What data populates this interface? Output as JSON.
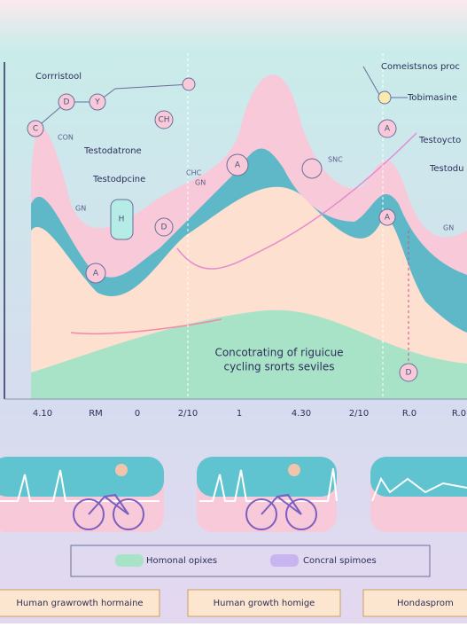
{
  "chart": {
    "labels": [
      "Corrristool",
      "Comeistsnos proc",
      "Tobimasine",
      "Testoycto",
      "Testodu",
      "Testodatrone",
      "Testodpcine"
    ],
    "small_labels": [
      "CON",
      "GN",
      "SNC",
      "CHC",
      "GN",
      "GN"
    ],
    "node_letters": [
      "C",
      "D",
      "Y",
      "A",
      "A",
      "D",
      "H",
      "A",
      "D",
      "A",
      "CH"
    ],
    "caption_lines": [
      "Concotrating of riguicue",
      "cycling srorts seviles"
    ],
    "x_labels": [
      "4.10",
      "RM",
      "0",
      "2/10",
      "1",
      "4.30",
      "2/10",
      "R.0",
      "R.0"
    ]
  },
  "legend": [
    "Homonal opixes",
    "Concral spimoes"
  ],
  "cards": [
    "Human grawrowth hormaine",
    "Human growth homige",
    "Hondasprom"
  ]
}
